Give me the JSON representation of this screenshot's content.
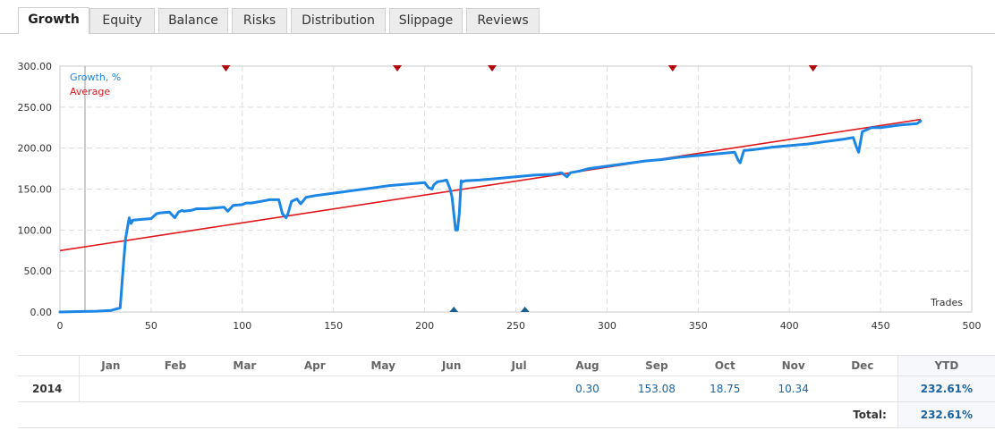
{
  "tabs": [
    {
      "label": "Growth",
      "active": true
    },
    {
      "label": "Equity",
      "active": false
    },
    {
      "label": "Balance",
      "active": false
    },
    {
      "label": "Risks",
      "active": false
    },
    {
      "label": "Distribution",
      "active": false
    },
    {
      "label": "Slippage",
      "active": false
    },
    {
      "label": "Reviews",
      "active": false
    }
  ],
  "chart_data": {
    "type": "line",
    "xlabel": "Trades",
    "xlim": [
      0,
      500
    ],
    "ylim": [
      0,
      300
    ],
    "x_ticks": [
      0,
      50,
      100,
      150,
      200,
      250,
      300,
      350,
      400,
      450,
      500
    ],
    "y_ticks": [
      "0.00",
      "50.00",
      "100.00",
      "150.00",
      "200.00",
      "250.00",
      "300.00"
    ],
    "grid": true,
    "legend": "top-left",
    "top_markers_x": [
      91,
      185,
      237,
      336,
      413
    ],
    "bottom_markers_x": [
      216,
      255
    ],
    "series": [
      {
        "name": "Growth, %",
        "color": "#1c86e5",
        "x": [
          0,
          10,
          20,
          28,
          33,
          35,
          36,
          38,
          39,
          40,
          45,
          50,
          53,
          55,
          60,
          63,
          65,
          67,
          68,
          72,
          75,
          80,
          85,
          90,
          92,
          95,
          100,
          102,
          105,
          110,
          115,
          120,
          122,
          124,
          125,
          127,
          130,
          132,
          135,
          140,
          150,
          160,
          170,
          180,
          190,
          200,
          202,
          204,
          205,
          207,
          210,
          212,
          214,
          215,
          216,
          217,
          218,
          219,
          220,
          221,
          222,
          230,
          240,
          250,
          260,
          270,
          275,
          278,
          280,
          285,
          290,
          300,
          310,
          320,
          330,
          340,
          350,
          360,
          370,
          372,
          373,
          375,
          380,
          390,
          400,
          410,
          420,
          430,
          435,
          437,
          438,
          440,
          445,
          450,
          460,
          470,
          472
        ],
        "values": [
          0,
          0.5,
          1,
          2,
          5,
          63,
          90,
          115,
          108,
          112,
          113,
          114,
          120,
          121,
          122,
          115,
          122,
          124,
          123,
          124,
          126,
          126,
          127,
          128,
          123,
          130,
          131,
          133,
          133,
          135,
          137,
          137,
          120,
          115,
          120,
          135,
          138,
          132,
          140,
          142,
          145,
          148,
          151,
          154,
          156,
          158,
          152,
          150,
          155,
          159,
          160,
          161,
          150,
          140,
          120,
          100,
          100,
          120,
          160,
          159,
          160,
          161,
          163,
          165,
          167,
          168,
          170,
          165,
          170,
          172,
          175,
          178,
          181,
          184,
          186,
          189,
          191,
          193,
          195,
          185,
          182,
          197,
          198,
          201,
          203,
          205,
          208,
          211,
          213,
          200,
          195,
          220,
          225,
          225,
          228,
          230,
          233
        ]
      },
      {
        "name": "Average",
        "color": "#e0161b",
        "x": [
          0,
          472
        ],
        "values": [
          75,
          235
        ]
      }
    ]
  },
  "table": {
    "months": [
      "Jan",
      "Feb",
      "Mar",
      "Apr",
      "May",
      "Jun",
      "Jul",
      "Aug",
      "Sep",
      "Oct",
      "Nov",
      "Dec"
    ],
    "ytd_header": "YTD",
    "rows": [
      {
        "year": "2014",
        "values": [
          "",
          "",
          "",
          "",
          "",
          "",
          "",
          "0.30",
          "153.08",
          "18.75",
          "10.34",
          ""
        ],
        "ytd": "232.61%"
      }
    ],
    "total_label": "Total:",
    "total_value": "232.61%"
  }
}
